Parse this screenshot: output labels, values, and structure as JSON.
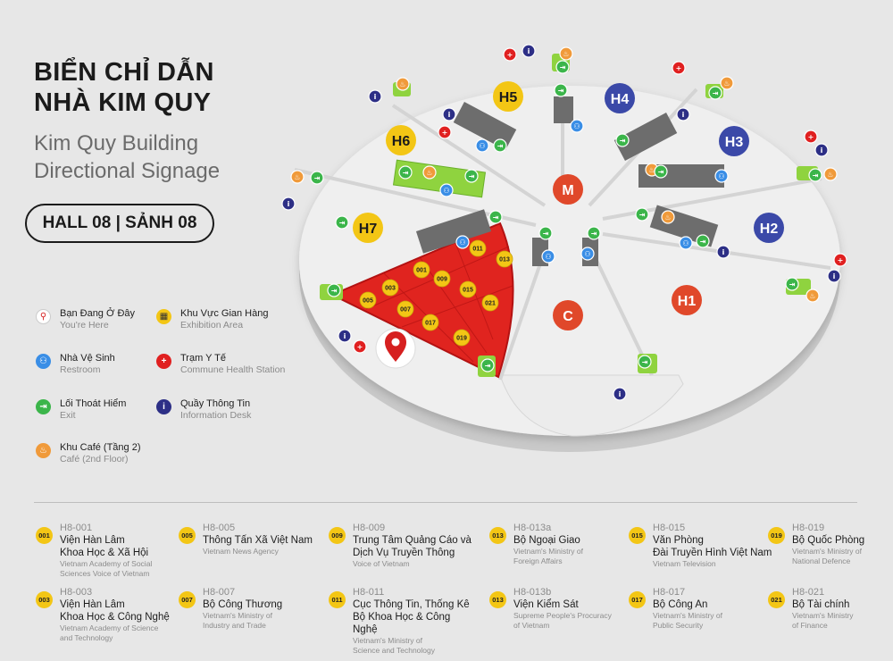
{
  "title": {
    "vn_line1": "BIỂN CHỈ DẪN",
    "vn_line2": "NHÀ KIM QUY",
    "en_line1": "Kim Quy Building",
    "en_line2": "Directional Signage",
    "hall": "HALL 08 | SẢNH 08"
  },
  "legend": [
    {
      "icon": "location-pin-icon",
      "color": "#d62020",
      "vn": "Bạn Đang Ở Đây",
      "en": "You're Here"
    },
    {
      "icon": "exhibition-area-icon",
      "color": "#f3c615",
      "vn": "Khu Vực Gian Hàng",
      "en": "Exhibition Area"
    },
    {
      "icon": "restroom-icon",
      "color": "#3a8ee6",
      "vn": "Nhà Vệ Sinh",
      "en": "Restroom"
    },
    {
      "icon": "health-station-icon",
      "color": "#e02020",
      "vn": "Trạm Y Tế",
      "en": "Commune Health Station"
    },
    {
      "icon": "exit-icon",
      "color": "#3bb54a",
      "vn": "Lối Thoát Hiểm",
      "en": "Exit"
    },
    {
      "icon": "information-icon",
      "color": "#2d2f86",
      "vn": "Quầy Thông Tin",
      "en": "Information Desk"
    },
    {
      "icon": "cafe-icon",
      "color": "#f09a3a",
      "vn": "Khu Café (Tầng 2)",
      "en": "Café (2nd Floor)"
    }
  ],
  "halls": [
    {
      "label": "H1",
      "color": "#e0482a"
    },
    {
      "label": "H2",
      "color": "#3b49a8"
    },
    {
      "label": "H3",
      "color": "#3b49a8"
    },
    {
      "label": "H4",
      "color": "#3b49a8"
    },
    {
      "label": "H5",
      "color": "#f3c615"
    },
    {
      "label": "H6",
      "color": "#f3c615"
    },
    {
      "label": "H7",
      "color": "#f3c615"
    },
    {
      "label": "M",
      "color": "#e0482a"
    },
    {
      "label": "C",
      "color": "#e0482a"
    }
  ],
  "booths": [
    "001",
    "003",
    "005",
    "007",
    "009",
    "011",
    "013",
    "015",
    "017",
    "019",
    "021"
  ],
  "directory": [
    {
      "badge": "001",
      "code": "H8-001",
      "name": "Viện Hàn Lâm\nKhoa Học & Xã Hội",
      "en": "Vietnam Academy of Social\nSciences Voice of Vietnam"
    },
    {
      "badge": "005",
      "code": "H8-005",
      "name": "Thông Tấn Xã Việt Nam",
      "en": "Vietnam News Agency"
    },
    {
      "badge": "009",
      "code": "H8-009",
      "name": "Trung Tâm Quảng Cáo và\nDịch Vụ Truyền Thông",
      "en": "Voice of Vietnam"
    },
    {
      "badge": "013",
      "code": "H8-013a",
      "name": "Bộ Ngoại Giao",
      "en": "Vietnam's Ministry of\nForeign Affairs"
    },
    {
      "badge": "015",
      "code": "H8-015",
      "name": "Văn Phòng\nĐài Truyền Hình Việt Nam",
      "en": "Vietnam Television"
    },
    {
      "badge": "019",
      "code": "H8-019",
      "name": "Bộ Quốc Phòng",
      "en": "Vietnam's Ministry of\nNational Defence"
    },
    {
      "badge": "003",
      "code": "H8-003",
      "name": "Viện Hàn Lâm\nKhoa Học & Công Nghệ",
      "en": "Vietnam Academy of Science\nand Technology"
    },
    {
      "badge": "007",
      "code": "H8-007",
      "name": "Bộ Công Thương",
      "en": "Vietnam's Ministry of\nIndustry and Trade"
    },
    {
      "badge": "011",
      "code": "H8-011",
      "name": "Cục Thông Tin, Thống Kê\nBộ Khoa Học & Công Nghệ",
      "en": "Vietnam's Ministry of\nScience and Technology"
    },
    {
      "badge": "013",
      "code": "H8-013b",
      "name": "Viện Kiểm Sát",
      "en": "Supreme People's Procuracy\nof Vietnam"
    },
    {
      "badge": "017",
      "code": "H8-017",
      "name": "Bộ Công An",
      "en": "Vietnam's Ministry of\nPublic Security"
    },
    {
      "badge": "021",
      "code": "H8-021",
      "name": "Bộ Tài chính",
      "en": "Vietnam's Ministry\nof Finance"
    }
  ]
}
